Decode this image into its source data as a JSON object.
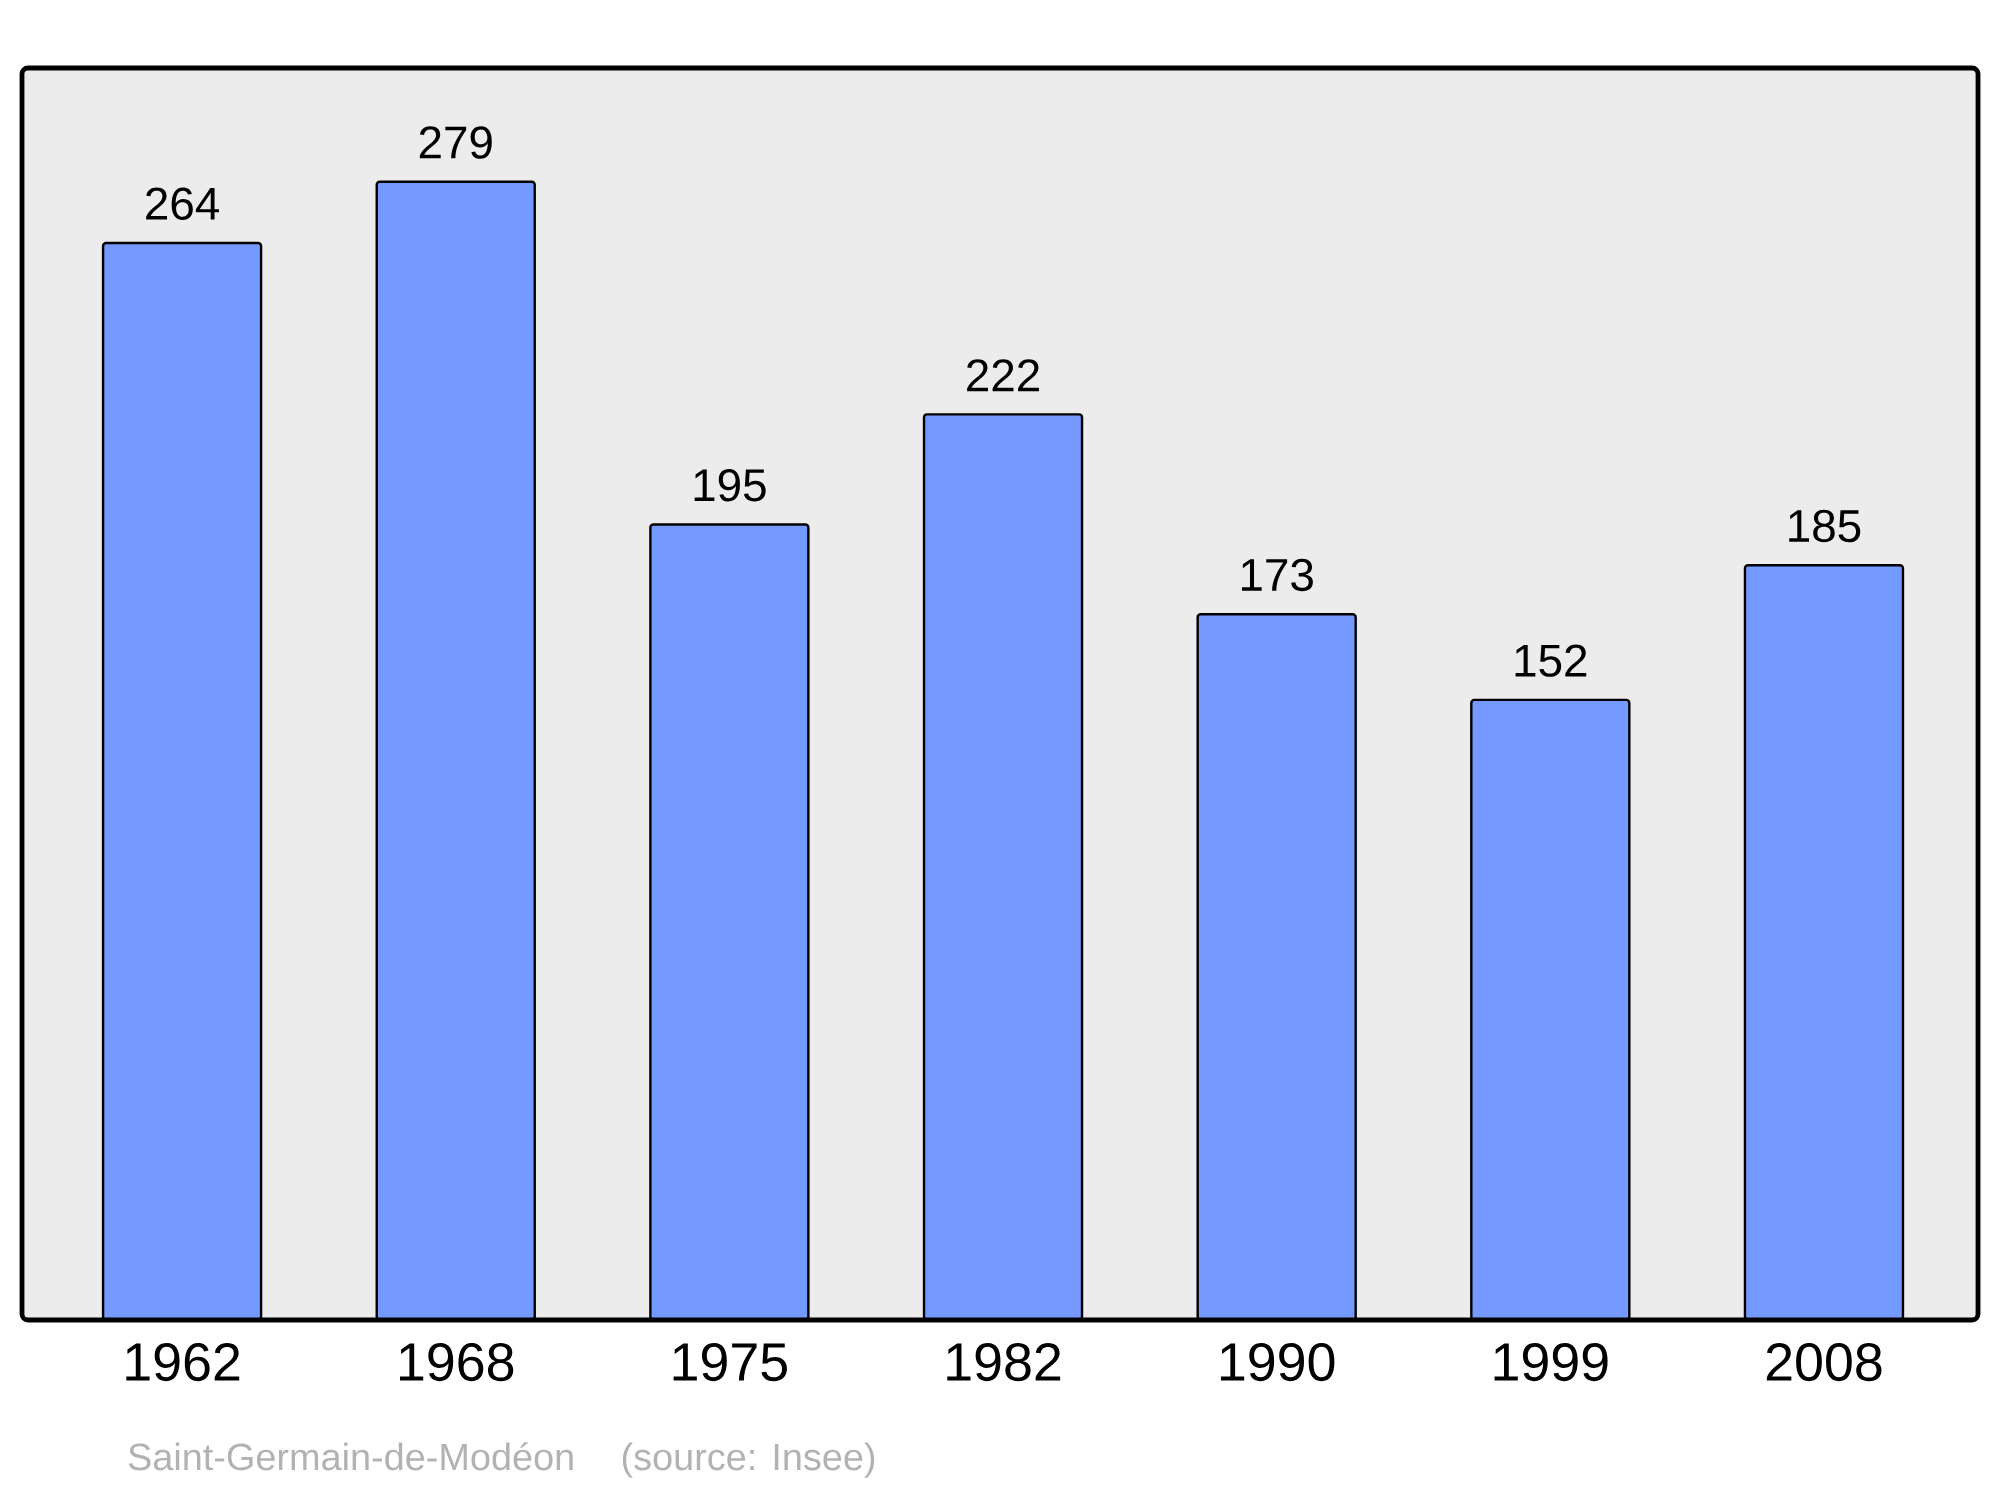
{
  "chart_data": {
    "type": "bar",
    "categories": [
      "1962",
      "1968",
      "1975",
      "1982",
      "1990",
      "1999",
      "2008"
    ],
    "values": [
      264,
      279,
      195,
      222,
      173,
      152,
      185
    ],
    "color": "#7499ff",
    "data_labels": true,
    "annotations": [
      "Saint-Germain-de-Modéon    (source: Insee)"
    ]
  }
}
